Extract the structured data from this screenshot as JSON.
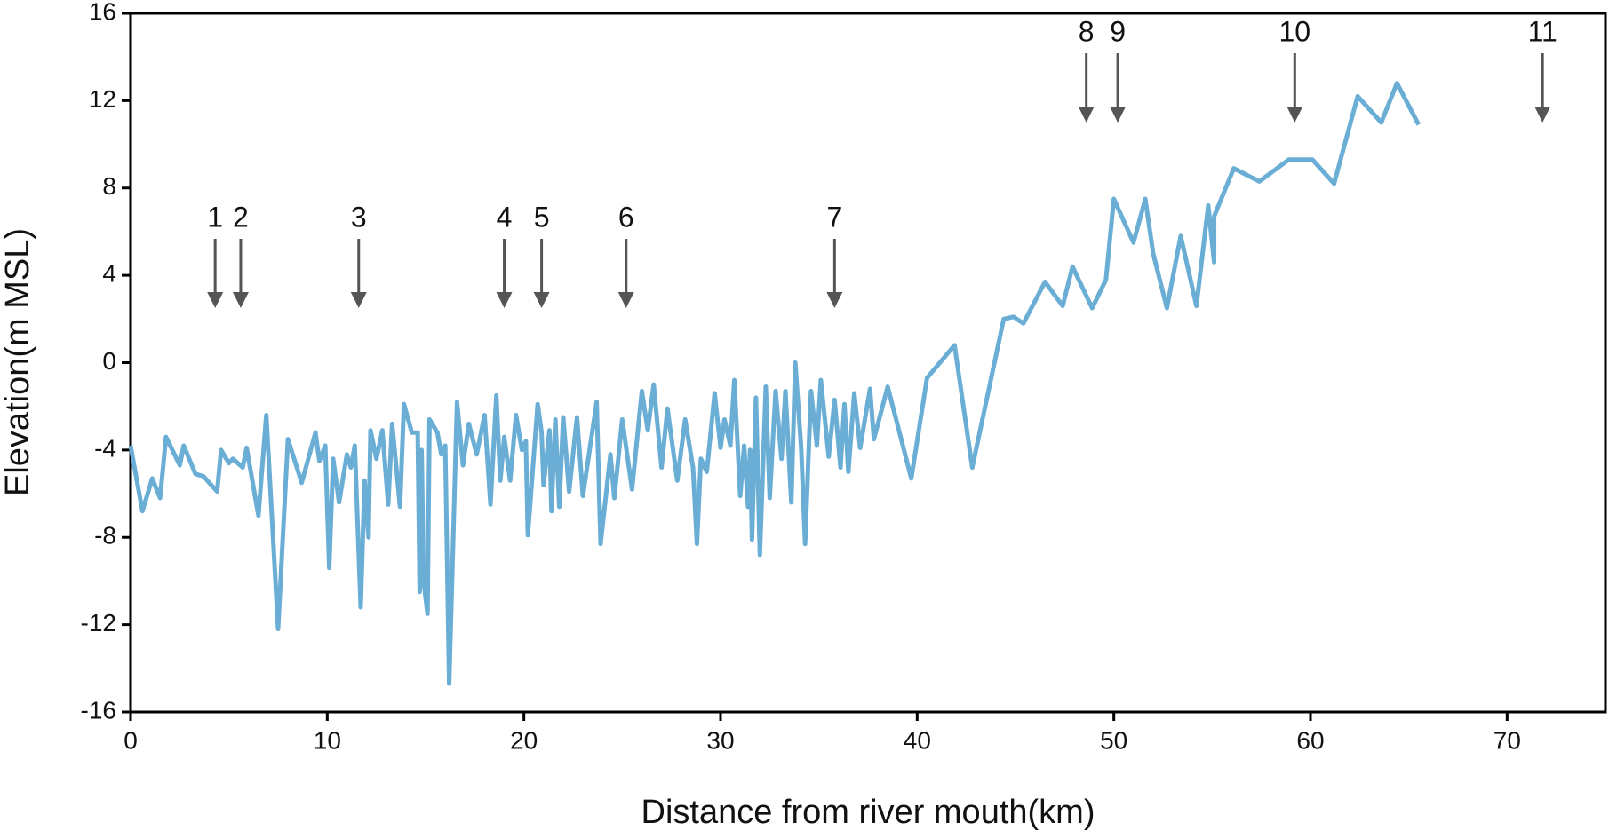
{
  "chart_data": {
    "type": "line",
    "x_label": "Distance from river mouth(km)",
    "y_label": "Elevation(m MSL)",
    "xlim": [
      0,
      75
    ],
    "xticks": [
      0,
      10,
      20,
      30,
      40,
      50,
      60,
      70
    ],
    "ylim": [
      -16,
      16
    ],
    "yticks": [
      -16,
      -12,
      -8,
      -4,
      0,
      4,
      8,
      12,
      16
    ],
    "series": [
      {
        "color": "#6aaed6",
        "x": [
          0,
          0.6,
          1.1,
          1.5,
          1.8,
          2.5,
          2.7,
          3.3,
          3.7,
          4.4,
          4.6,
          5,
          5.2,
          5.7,
          5.9,
          6.5,
          6.9,
          7.5,
          8,
          8.7,
          9.4,
          9.6,
          9.9,
          10.1,
          10.3,
          10.6,
          11,
          11.2,
          11.4,
          11.7,
          11.9,
          12.1,
          12.2,
          12.5,
          12.8,
          13.1,
          13.3,
          13.7,
          13.9,
          14.3,
          14.6,
          14.7,
          14.8,
          14.9,
          15.1,
          15.2,
          15.6,
          15.8,
          16,
          16.2,
          16.6,
          16.9,
          17.2,
          17.6,
          18,
          18.3,
          18.6,
          18.8,
          19,
          19.3,
          19.6,
          19.9,
          20.1,
          20.2,
          20.7,
          20.9,
          21,
          21.3,
          21.4,
          21.6,
          21.8,
          22,
          22.3,
          22.7,
          23,
          23.7,
          23.9,
          24.4,
          24.6,
          25,
          25.5,
          26,
          26.3,
          26.6,
          27,
          27.3,
          27.8,
          28.2,
          28.6,
          28.8,
          29,
          29.3,
          29.7,
          30,
          30.2,
          30.5,
          30.7,
          31,
          31.2,
          31.4,
          31.5,
          31.6,
          31.8,
          32,
          32.3,
          32.5,
          32.8,
          33.1,
          33.3,
          33.6,
          33.8,
          34.1,
          34.3,
          34.6,
          34.9,
          35.1,
          35.5,
          35.8,
          36.1,
          36.3,
          36.5,
          36.8,
          37.1,
          37.6,
          37.8,
          38.5,
          39.7,
          40.5,
          41.9,
          42.8,
          44.4,
          44.9,
          45.4,
          46.5,
          47.4,
          47.9,
          48.9,
          49.6,
          50,
          51,
          51.6,
          52,
          52.7,
          53.4,
          54.2,
          54.8,
          55.1,
          55.1,
          56.1,
          57.4,
          58.9,
          60.1,
          61.2,
          62.4,
          63.6,
          64.4,
          65.5
        ],
        "values": [
          -3.8,
          -6.8,
          -5.3,
          -6.2,
          -3.4,
          -4.7,
          -3.8,
          -5.1,
          -5.2,
          -5.9,
          -4,
          -4.6,
          -4.4,
          -4.8,
          -3.9,
          -7,
          -2.4,
          -12.2,
          -3.5,
          -5.5,
          -3.2,
          -4.5,
          -3.8,
          -9.4,
          -4.4,
          -6.4,
          -4.2,
          -4.8,
          -3.8,
          -11.2,
          -5.4,
          -8,
          -3.1,
          -4.4,
          -3.1,
          -6.5,
          -2.8,
          -6.6,
          -1.9,
          -3.2,
          -3.2,
          -10.5,
          -4,
          -10,
          -11.5,
          -2.6,
          -3.2,
          -4.2,
          -3.8,
          -14.7,
          -1.8,
          -4.7,
          -2.8,
          -4.2,
          -2.4,
          -6.5,
          -1.5,
          -5.4,
          -3.4,
          -5.4,
          -2.4,
          -4,
          -3.6,
          -7.9,
          -1.9,
          -3.2,
          -5.6,
          -3.1,
          -6.8,
          -2.6,
          -6.6,
          -2.5,
          -5.9,
          -2.5,
          -6.1,
          -1.8,
          -8.3,
          -4.2,
          -6.2,
          -2.6,
          -5.8,
          -1.3,
          -3.1,
          -1,
          -4.8,
          -2.1,
          -5.4,
          -2.6,
          -4.8,
          -8.3,
          -4.4,
          -5,
          -1.4,
          -3.9,
          -2.6,
          -3.8,
          -0.8,
          -6.1,
          -3.8,
          -6.6,
          -4,
          -8.1,
          -1.6,
          -8.8,
          -1.1,
          -6.2,
          -1.3,
          -4.4,
          -1.3,
          -6.4,
          0,
          -3.9,
          -8.3,
          -1.3,
          -3.8,
          -0.8,
          -4.3,
          -1.7,
          -4.8,
          -1.9,
          -5,
          -1.4,
          -3.9,
          -1.2,
          -3.5,
          -1.1,
          -5.3,
          -0.7,
          0.8,
          -4.8,
          2,
          2.1,
          1.8,
          3.7,
          2.6,
          4.4,
          2.5,
          3.8,
          7.5,
          5.5,
          7.5,
          5,
          2.5,
          5.8,
          2.6,
          7.2,
          4.6,
          6.7,
          8.9,
          8.3,
          9.3,
          9.3,
          8.2,
          12.2,
          11,
          12.8,
          10.9
        ]
      }
    ],
    "annotations": [
      {
        "text": "1",
        "x": 4.3,
        "y": 2.5
      },
      {
        "text": "2",
        "x": 5.6,
        "y": 2.5
      },
      {
        "text": "3",
        "x": 11.6,
        "y": 2.5
      },
      {
        "text": "4",
        "x": 19,
        "y": 2.5
      },
      {
        "text": "5",
        "x": 20.9,
        "y": 2.5
      },
      {
        "text": "6",
        "x": 25.2,
        "y": 2.5
      },
      {
        "text": "7",
        "x": 35.8,
        "y": 2.5
      },
      {
        "text": "8",
        "x": 48.6,
        "y": 11
      },
      {
        "text": "9",
        "x": 50.2,
        "y": 11
      },
      {
        "text": "10",
        "x": 59.2,
        "y": 11
      },
      {
        "text": "11",
        "x": 71.8,
        "y": 11
      }
    ]
  }
}
